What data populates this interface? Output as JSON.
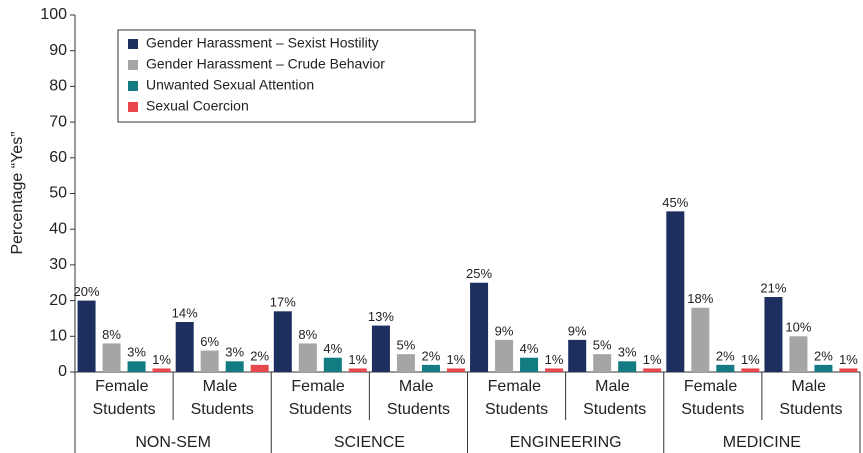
{
  "chart_data": {
    "type": "bar",
    "y_label": "Percentage “Yes”",
    "categories": [
      "Female Students",
      "Male Students",
      "Female Students",
      "Male Students",
      "Female Students",
      "Male Students",
      "Female Students",
      "Male Students"
    ],
    "groups": [
      "NON-SEM",
      "SCIENCE",
      "ENGINEERING",
      "MEDICINE"
    ],
    "series": [
      {
        "name": "Gender Harassment – Sexist Hostility",
        "color": "#1c2f5f",
        "values": [
          20,
          14,
          17,
          13,
          25,
          9,
          45,
          21
        ],
        "value_labels": [
          "20%",
          "14%",
          "17%",
          "13%",
          "25%",
          "9%",
          "45%",
          "21%"
        ]
      },
      {
        "name": "Gender Harassment – Crude Behavior",
        "color": "#a5a5a5",
        "values": [
          8,
          6,
          8,
          5,
          9,
          5,
          18,
          10
        ],
        "value_labels": [
          "8%",
          "6%",
          "8%",
          "5%",
          "9%",
          "5%",
          "18%",
          "10%"
        ]
      },
      {
        "name": "Unwanted Sexual Attention",
        "color": "#127c82",
        "values": [
          3,
          3,
          4,
          2,
          4,
          3,
          2,
          2
        ],
        "value_labels": [
          "3%",
          "3%",
          "4%",
          "2%",
          "4%",
          "3%",
          "2%",
          "2%"
        ]
      },
      {
        "name": "Sexual Coercion",
        "color": "#e8484d",
        "values": [
          1,
          2,
          1,
          1,
          1,
          1,
          1,
          1
        ],
        "value_labels": [
          "1%",
          "2%",
          "1%",
          "1%",
          "1%",
          "1%",
          "1%",
          "1%"
        ]
      }
    ],
    "ylim": [
      0,
      100
    ],
    "yticks": [
      0,
      10,
      20,
      30,
      40,
      50,
      60,
      70,
      80,
      90,
      100
    ],
    "grid": false,
    "legend": "upper left"
  }
}
